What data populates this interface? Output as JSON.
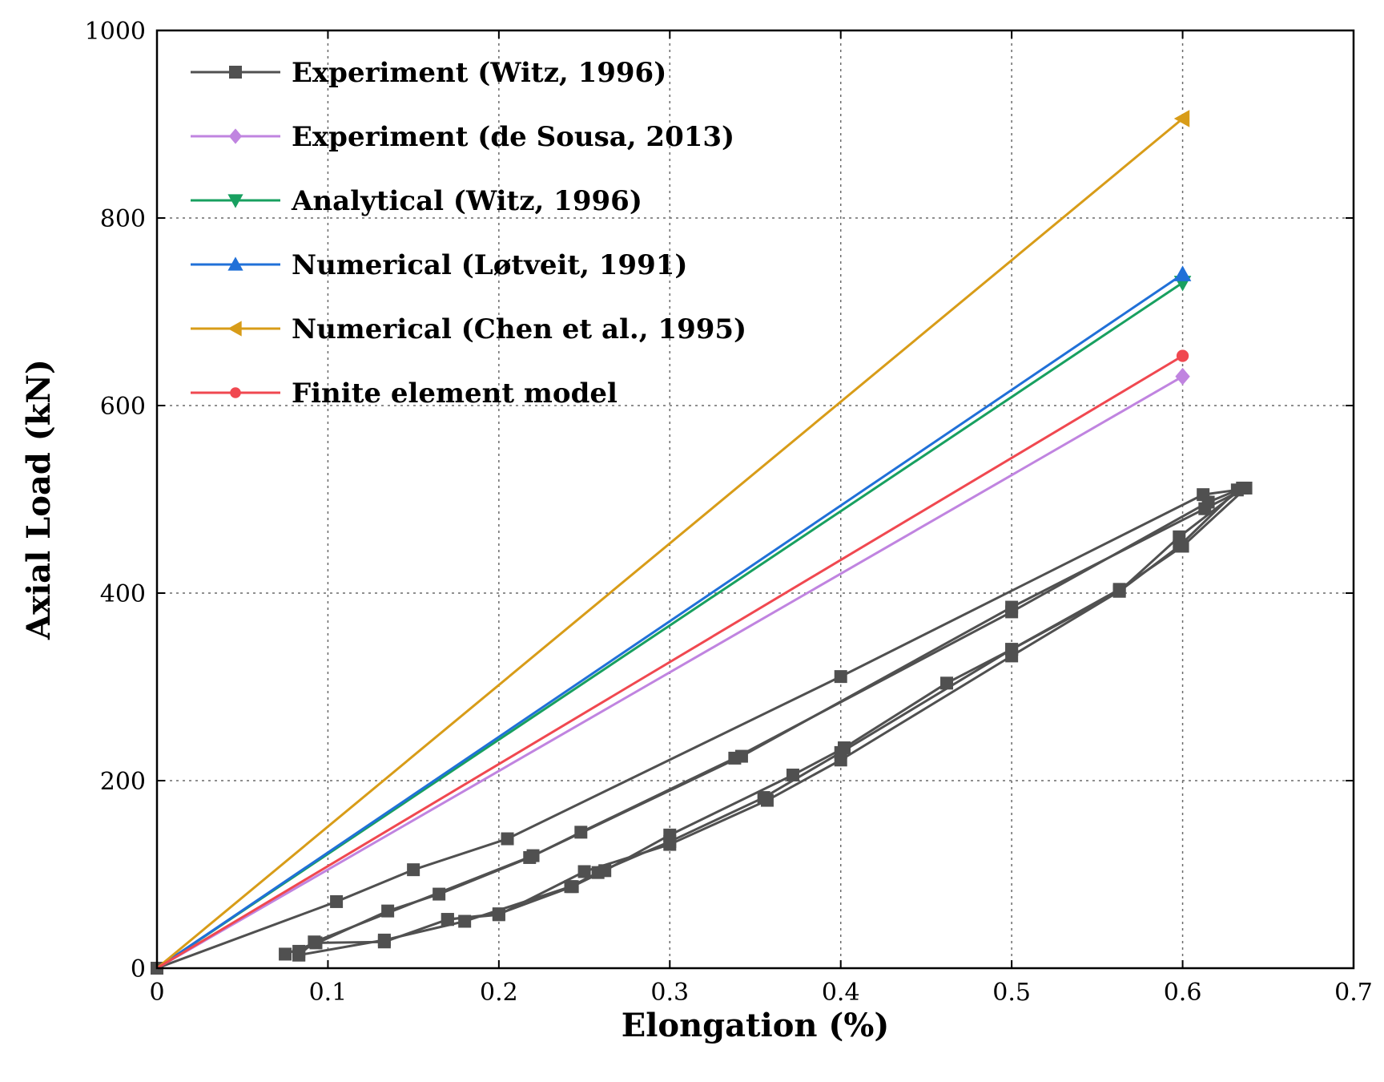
{
  "chart_data": {
    "type": "line",
    "xlabel": "Elongation (%)",
    "ylabel": "Axial Load (kN)",
    "xlim": [
      0,
      0.7
    ],
    "ylim": [
      0,
      1000
    ],
    "x_ticks": [
      0,
      0.1,
      0.2,
      0.3,
      0.4,
      0.5,
      0.6,
      0.7
    ],
    "y_ticks": [
      0,
      200,
      400,
      600,
      800,
      1000
    ],
    "x_tick_labels": [
      "0",
      "0.1",
      "0.2",
      "0.3",
      "0.4",
      "0.5",
      "0.6",
      "0.7"
    ],
    "y_tick_labels": [
      "0",
      "200",
      "400",
      "600",
      "800",
      "1000"
    ],
    "grid": true,
    "legend_position": "top-left",
    "series": [
      {
        "name": "Experiment (Witz, 1996)",
        "color": "#505050",
        "marker": "square",
        "lines": [
          {
            "x": [
              0.0,
              0.105,
              0.15,
              0.205,
              0.4,
              0.612,
              0.632,
              0.598,
              0.563,
              0.5,
              0.4,
              0.357,
              0.3,
              0.25,
              0.2,
              0.17,
              0.133,
              0.093,
              0.075
            ],
            "y": [
              0,
              71,
              105,
              138,
              311,
              505,
              510,
              450,
              402,
              333,
              222,
              179,
              132,
              103,
              57,
              52,
              28,
              27,
              15
            ]
          },
          {
            "x": [
              0.083,
              0.135,
              0.165,
              0.218,
              0.248,
              0.338,
              0.5,
              0.615,
              0.635,
              0.598,
              0.563,
              0.5,
              0.4,
              0.355,
              0.3,
              0.258,
              0.242,
              0.18,
              0.133,
              0.083
            ],
            "y": [
              18,
              61,
              79,
              118,
              145,
              224,
              380,
              497,
              512,
              460,
              402,
              340,
              230,
              182,
              135,
              102,
              87,
              50,
              30,
              14
            ]
          },
          {
            "x": [
              0.083,
              0.092,
              0.22,
              0.342,
              0.5,
              0.613,
              0.637,
              0.6,
              0.563,
              0.5,
              0.462,
              0.402,
              0.372,
              0.3,
              0.262,
              0.243,
              0.2,
              0.17
            ],
            "y": [
              14,
              28,
              120,
              226,
              385,
              490,
              512,
              450,
              404,
              340,
              304,
              235,
              206,
              142,
              104,
              87,
              58,
              52
            ]
          }
        ]
      },
      {
        "name": "Experiment (de Sousa, 2013)",
        "color": "#c084e0",
        "marker": "diamond",
        "x": [
          0,
          0.6
        ],
        "y": [
          0,
          631
        ]
      },
      {
        "name": "Analytical (Witz, 1996)",
        "color": "#18a060",
        "marker": "triangle-down",
        "x": [
          0,
          0.6
        ],
        "y": [
          0,
          731
        ]
      },
      {
        "name": "Numerical (Løtveit, 1991)",
        "color": "#2070d8",
        "marker": "triangle-up",
        "x": [
          0,
          0.6
        ],
        "y": [
          0,
          740
        ]
      },
      {
        "name": "Numerical (Chen et al., 1995)",
        "color": "#d89c18",
        "marker": "triangle-left",
        "x": [
          0,
          0.6
        ],
        "y": [
          0,
          906
        ]
      },
      {
        "name": "Finite element model",
        "color": "#f04850",
        "marker": "circle",
        "x": [
          0,
          0.6
        ],
        "y": [
          0,
          653
        ]
      }
    ]
  }
}
